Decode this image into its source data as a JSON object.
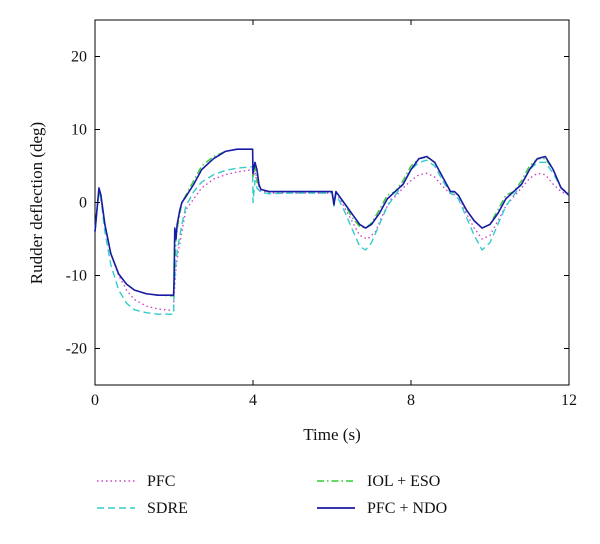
{
  "chart_data": {
    "type": "line",
    "title": "",
    "xlabel": "Time (s)",
    "ylabel": "Rudder deflection (deg)",
    "xlim": [
      0,
      12
    ],
    "ylim": [
      -25,
      25
    ],
    "xticks": [
      0,
      4,
      8,
      12
    ],
    "yticks": [
      -20,
      -10,
      0,
      10,
      20
    ],
    "grid": false,
    "legend_position": "bottom",
    "series": [
      {
        "name": "PFC",
        "color": "#cc44cc",
        "dash": "dotted",
        "points": [
          [
            0,
            -4
          ],
          [
            0.05,
            -1
          ],
          [
            0.1,
            1.3
          ],
          [
            0.15,
            0.5
          ],
          [
            0.25,
            -3
          ],
          [
            0.4,
            -7
          ],
          [
            0.6,
            -10
          ],
          [
            0.8,
            -12
          ],
          [
            1.0,
            -13.3
          ],
          [
            1.3,
            -14.2
          ],
          [
            1.6,
            -14.6
          ],
          [
            1.99,
            -14.8
          ],
          [
            2.0,
            -13
          ],
          [
            2.05,
            -9
          ],
          [
            2.1,
            -7
          ],
          [
            2.2,
            -4
          ],
          [
            2.3,
            -1
          ],
          [
            2.5,
            0.5
          ],
          [
            2.7,
            2
          ],
          [
            3.0,
            3.2
          ],
          [
            3.3,
            3.8
          ],
          [
            3.6,
            4.2
          ],
          [
            3.99,
            4.5
          ],
          [
            4.0,
            3.5
          ],
          [
            4.05,
            4.2
          ],
          [
            4.1,
            2.8
          ],
          [
            4.2,
            1.6
          ],
          [
            4.4,
            1.3
          ],
          [
            5.0,
            1.3
          ],
          [
            5.5,
            1.3
          ],
          [
            6.0,
            1.3
          ],
          [
            6.05,
            -0.3
          ],
          [
            6.1,
            1.5
          ],
          [
            6.3,
            -0.5
          ],
          [
            6.5,
            -2.5
          ],
          [
            6.7,
            -4.5
          ],
          [
            6.9,
            -5
          ],
          [
            7.1,
            -4
          ],
          [
            7.3,
            -1.5
          ],
          [
            7.5,
            0.5
          ],
          [
            7.6,
            0.8
          ],
          [
            7.8,
            2
          ],
          [
            8.0,
            3
          ],
          [
            8.2,
            3.8
          ],
          [
            8.4,
            4
          ],
          [
            8.6,
            3.5
          ],
          [
            8.8,
            2.2
          ],
          [
            9.0,
            1.2
          ],
          [
            9.2,
            1
          ],
          [
            9.4,
            -1.5
          ],
          [
            9.6,
            -3.5
          ],
          [
            9.8,
            -5
          ],
          [
            10.0,
            -4.5
          ],
          [
            10.2,
            -2.5
          ],
          [
            10.4,
            -0.5
          ],
          [
            10.6,
            0.8
          ],
          [
            10.8,
            2
          ],
          [
            11.0,
            3.3
          ],
          [
            11.2,
            4
          ],
          [
            11.4,
            3.8
          ],
          [
            11.6,
            2.5
          ],
          [
            11.8,
            1.5
          ],
          [
            12,
            1
          ]
        ]
      },
      {
        "name": "SDRE",
        "color": "#33cccc",
        "dash": "dashed",
        "points": [
          [
            0,
            -4
          ],
          [
            0.05,
            -1
          ],
          [
            0.1,
            1.5
          ],
          [
            0.15,
            0.5
          ],
          [
            0.25,
            -4
          ],
          [
            0.4,
            -8.5
          ],
          [
            0.6,
            -12
          ],
          [
            0.8,
            -13.8
          ],
          [
            1.0,
            -14.7
          ],
          [
            1.3,
            -15.1
          ],
          [
            1.6,
            -15.3
          ],
          [
            1.99,
            -15.3
          ],
          [
            2.0,
            -12
          ],
          [
            2.05,
            -8
          ],
          [
            2.1,
            -6
          ],
          [
            2.2,
            -3
          ],
          [
            2.3,
            -0.5
          ],
          [
            2.5,
            1.5
          ],
          [
            2.7,
            2.8
          ],
          [
            3.0,
            3.8
          ],
          [
            3.3,
            4.4
          ],
          [
            3.6,
            4.7
          ],
          [
            3.99,
            4.9
          ],
          [
            4.0,
            0
          ],
          [
            4.05,
            3
          ],
          [
            4.1,
            2
          ],
          [
            4.2,
            1.4
          ],
          [
            4.4,
            1.2
          ],
          [
            5.0,
            1.3
          ],
          [
            5.5,
            1.3
          ],
          [
            6.0,
            1.3
          ],
          [
            6.05,
            -0.5
          ],
          [
            6.1,
            1.2
          ],
          [
            6.3,
            -1
          ],
          [
            6.5,
            -3.5
          ],
          [
            6.7,
            -6
          ],
          [
            6.85,
            -6.5
          ],
          [
            7.0,
            -5.5
          ],
          [
            7.2,
            -3
          ],
          [
            7.4,
            -0.5
          ],
          [
            7.6,
            1
          ],
          [
            7.8,
            2.5
          ],
          [
            8.0,
            4.5
          ],
          [
            8.2,
            5.5
          ],
          [
            8.4,
            5.8
          ],
          [
            8.6,
            5
          ],
          [
            8.8,
            3
          ],
          [
            9.0,
            1.3
          ],
          [
            9.2,
            0.5
          ],
          [
            9.4,
            -2
          ],
          [
            9.6,
            -4.5
          ],
          [
            9.8,
            -6.5
          ],
          [
            10.0,
            -5.5
          ],
          [
            10.2,
            -3
          ],
          [
            10.4,
            -0.5
          ],
          [
            10.6,
            1
          ],
          [
            10.8,
            2.5
          ],
          [
            11.0,
            4.5
          ],
          [
            11.2,
            5.5
          ],
          [
            11.4,
            5.5
          ],
          [
            11.6,
            4
          ],
          [
            11.8,
            2
          ],
          [
            12,
            1
          ]
        ]
      },
      {
        "name": "IOL + ESO",
        "color": "#33cc33",
        "dash": "dashdot",
        "points": [
          [
            0,
            -4
          ],
          [
            0.05,
            -1
          ],
          [
            0.1,
            1.8
          ],
          [
            0.15,
            0.8
          ],
          [
            0.25,
            -3
          ],
          [
            0.4,
            -7
          ],
          [
            0.6,
            -9.8
          ],
          [
            0.8,
            -11.2
          ],
          [
            1.0,
            -12
          ],
          [
            1.3,
            -12.5
          ],
          [
            1.6,
            -12.7
          ],
          [
            1.99,
            -12.8
          ],
          [
            2.0,
            -11
          ],
          [
            2.05,
            -5
          ],
          [
            2.1,
            -3
          ],
          [
            2.2,
            0
          ],
          [
            2.3,
            1
          ],
          [
            2.5,
            3
          ],
          [
            2.7,
            5
          ],
          [
            3.0,
            6.3
          ],
          [
            3.3,
            7
          ],
          [
            3.6,
            7.3
          ],
          [
            3.99,
            7.3
          ],
          [
            4.0,
            3.5
          ],
          [
            4.05,
            5
          ],
          [
            4.1,
            3
          ],
          [
            4.2,
            1.8
          ],
          [
            4.4,
            1.5
          ],
          [
            5.0,
            1.5
          ],
          [
            5.5,
            1.5
          ],
          [
            6.0,
            1.5
          ],
          [
            6.05,
            -0.3
          ],
          [
            6.1,
            1.5
          ],
          [
            6.3,
            0
          ],
          [
            6.5,
            -2
          ],
          [
            6.7,
            -3.3
          ],
          [
            6.85,
            -3.5
          ],
          [
            7.0,
            -2.8
          ],
          [
            7.2,
            -1
          ],
          [
            7.4,
            1
          ],
          [
            7.6,
            1.5
          ],
          [
            7.8,
            3
          ],
          [
            8.0,
            5
          ],
          [
            8.2,
            6
          ],
          [
            8.4,
            6.2
          ],
          [
            8.6,
            5.5
          ],
          [
            8.8,
            3.5
          ],
          [
            9.0,
            1.5
          ],
          [
            9.2,
            1
          ],
          [
            9.4,
            -1
          ],
          [
            9.6,
            -2.5
          ],
          [
            9.8,
            -3.5
          ],
          [
            10.0,
            -3
          ],
          [
            10.2,
            -1
          ],
          [
            10.4,
            1
          ],
          [
            10.6,
            1.5
          ],
          [
            10.8,
            3
          ],
          [
            11.0,
            5
          ],
          [
            11.2,
            6
          ],
          [
            11.4,
            6
          ],
          [
            11.6,
            4.5
          ],
          [
            11.8,
            2
          ],
          [
            12,
            1.2
          ]
        ]
      },
      {
        "name": "PFC + NDO",
        "color": "#1a1aa6",
        "dash": "solid",
        "points": [
          [
            0,
            -4
          ],
          [
            0.05,
            -1
          ],
          [
            0.1,
            2
          ],
          [
            0.15,
            1
          ],
          [
            0.25,
            -3
          ],
          [
            0.4,
            -7
          ],
          [
            0.6,
            -9.8
          ],
          [
            0.8,
            -11.2
          ],
          [
            1.0,
            -12
          ],
          [
            1.3,
            -12.5
          ],
          [
            1.6,
            -12.7
          ],
          [
            1.99,
            -12.7
          ],
          [
            2.0,
            -11
          ],
          [
            2.02,
            -3.5
          ],
          [
            2.05,
            -5
          ],
          [
            2.08,
            -3
          ],
          [
            2.15,
            -1
          ],
          [
            2.2,
            0
          ],
          [
            2.3,
            0.8
          ],
          [
            2.5,
            2.5
          ],
          [
            2.7,
            4.5
          ],
          [
            3.0,
            6
          ],
          [
            3.3,
            7
          ],
          [
            3.6,
            7.3
          ],
          [
            3.99,
            7.3
          ],
          [
            4.0,
            4
          ],
          [
            4.05,
            5.5
          ],
          [
            4.1,
            4.5
          ],
          [
            4.15,
            2.5
          ],
          [
            4.2,
            1.8
          ],
          [
            4.4,
            1.5
          ],
          [
            5.0,
            1.5
          ],
          [
            5.5,
            1.5
          ],
          [
            6.0,
            1.5
          ],
          [
            6.05,
            -0.3
          ],
          [
            6.1,
            1.5
          ],
          [
            6.3,
            0
          ],
          [
            6.5,
            -1.5
          ],
          [
            6.7,
            -3
          ],
          [
            6.85,
            -3.5
          ],
          [
            7.0,
            -3
          ],
          [
            7.2,
            -1.5
          ],
          [
            7.4,
            0.5
          ],
          [
            7.6,
            1.5
          ],
          [
            7.8,
            2.5
          ],
          [
            8.0,
            4.5
          ],
          [
            8.2,
            6
          ],
          [
            8.4,
            6.3
          ],
          [
            8.6,
            5.5
          ],
          [
            8.8,
            3.5
          ],
          [
            9.0,
            1.5
          ],
          [
            9.1,
            1.5
          ],
          [
            9.2,
            1
          ],
          [
            9.4,
            -1
          ],
          [
            9.6,
            -2.5
          ],
          [
            9.8,
            -3.5
          ],
          [
            10.0,
            -3
          ],
          [
            10.2,
            -1.5
          ],
          [
            10.4,
            0.5
          ],
          [
            10.6,
            1.5
          ],
          [
            10.8,
            2.5
          ],
          [
            11.0,
            4.5
          ],
          [
            11.2,
            6
          ],
          [
            11.4,
            6.3
          ],
          [
            11.6,
            4.5
          ],
          [
            11.8,
            2
          ],
          [
            12,
            1
          ]
        ]
      }
    ]
  }
}
